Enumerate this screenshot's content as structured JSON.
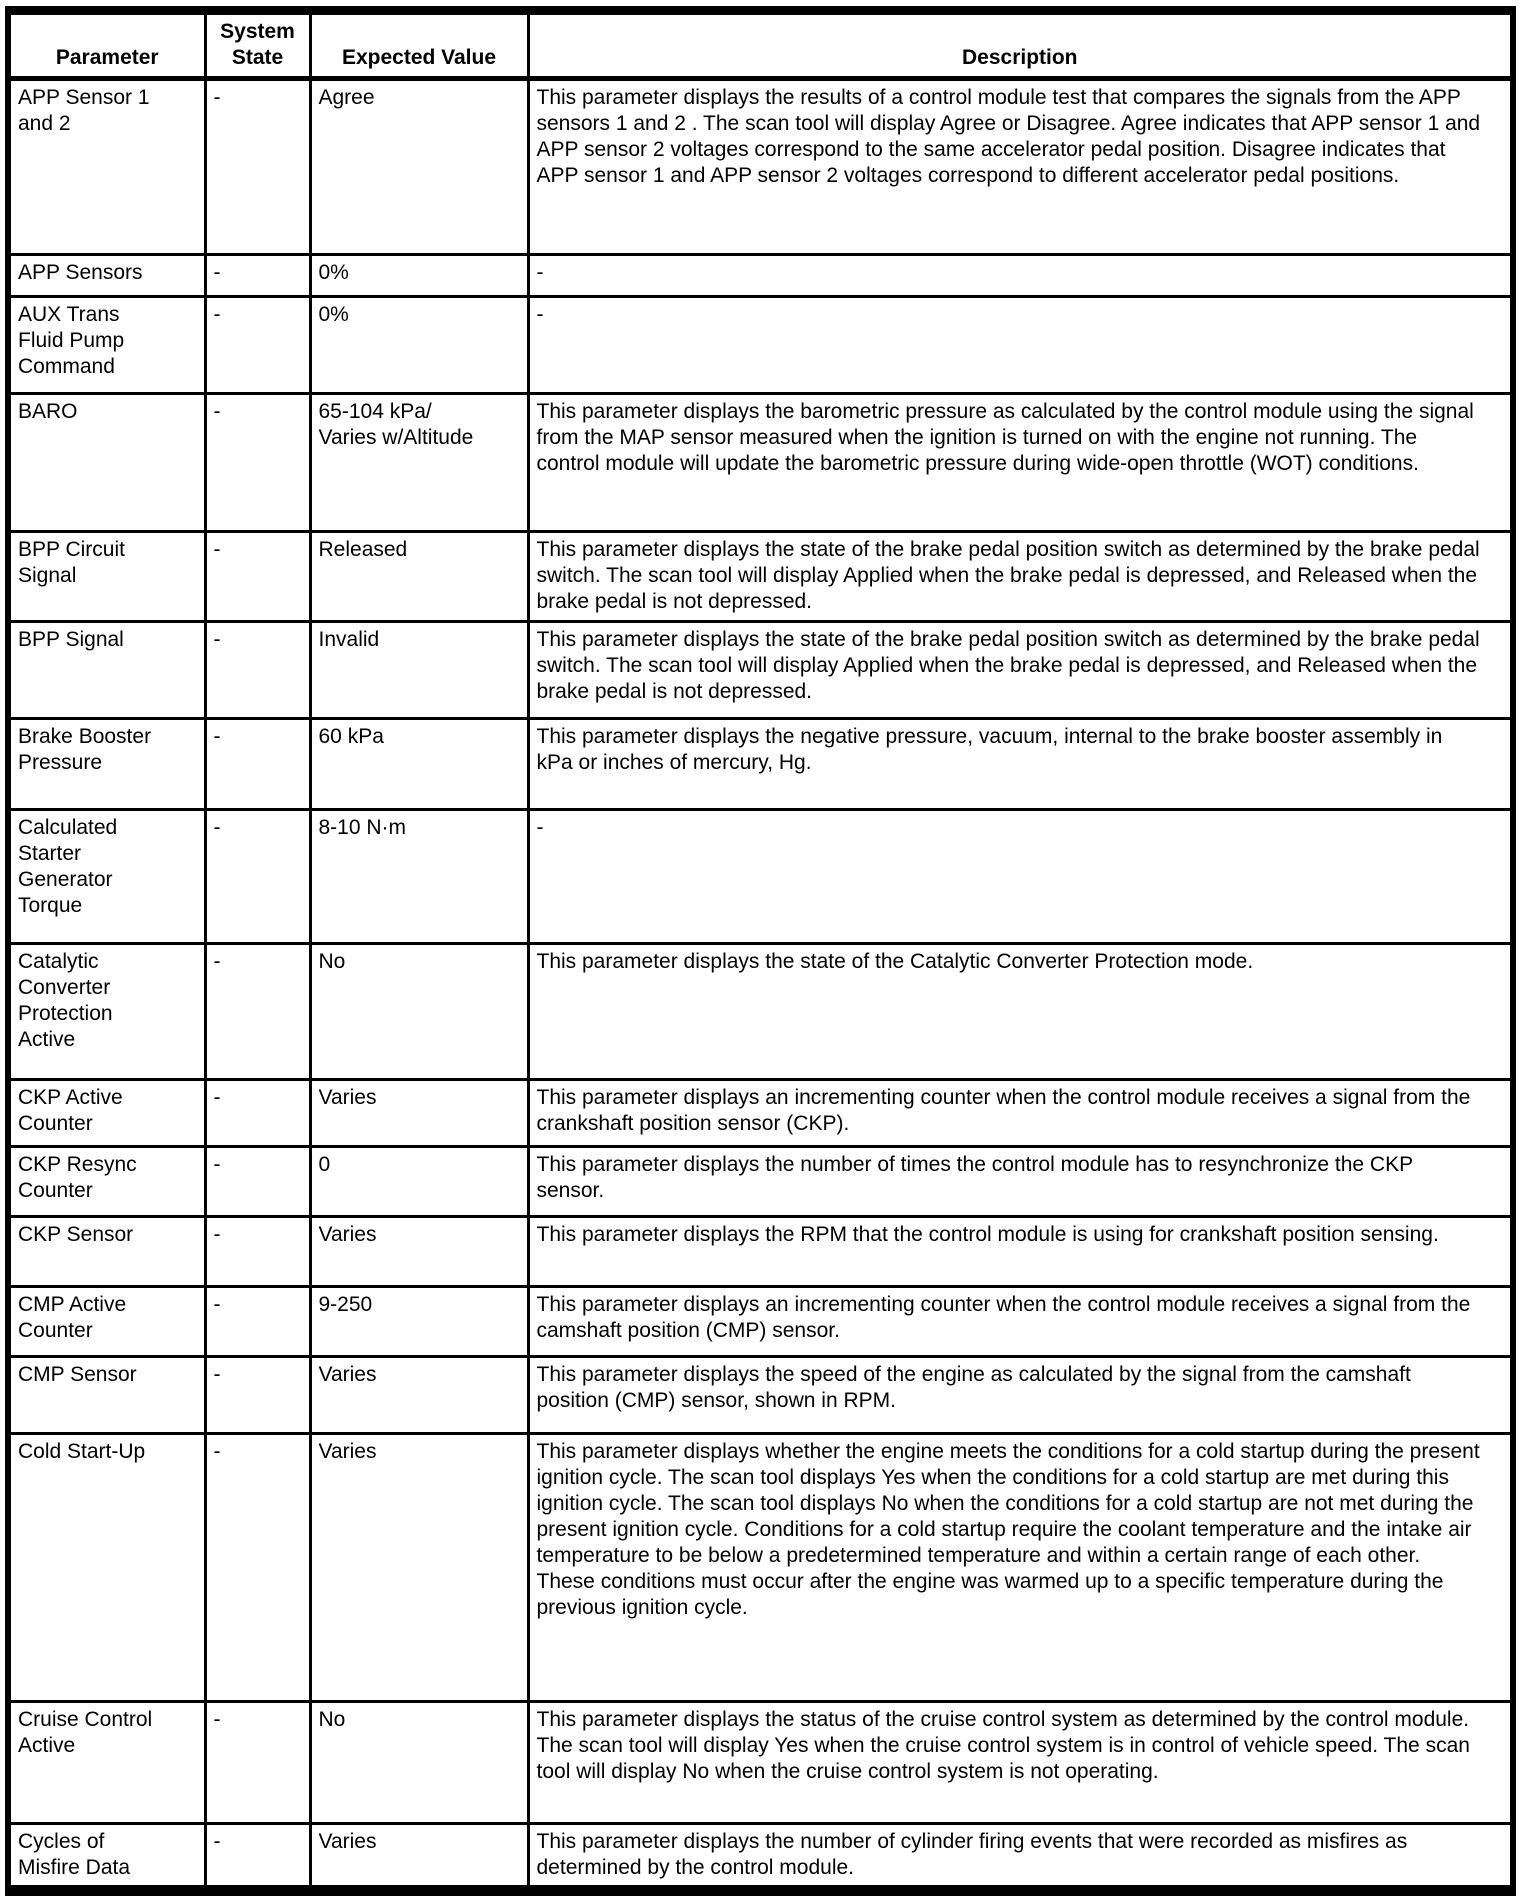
{
  "table": {
    "columns": [
      "Parameter",
      "System State",
      "Expected Value",
      "Description"
    ],
    "rows": [
      {
        "parameter": "APP Sensor 1\nand 2",
        "system_state": "-",
        "expected_value": "Agree",
        "description": "This parameter displays the results of a control module test that compares the signals from the APP sensors 1 and 2 . The scan tool will display Agree or Disagree. Agree indicates that APP sensor 1 and APP sensor 2 voltages correspond to the same accelerator pedal position. Disagree indicates that APP sensor 1 and APP sensor 2 voltages correspond to different accelerator pedal positions."
      },
      {
        "parameter": "APP Sensors",
        "system_state": "-",
        "expected_value": "0%",
        "description": "-"
      },
      {
        "parameter": "AUX Trans\nFluid Pump\nCommand",
        "system_state": "-",
        "expected_value": "0%",
        "description": "-"
      },
      {
        "parameter": "BARO",
        "system_state": "-",
        "expected_value": "65-104 kPa/\nVaries w/Altitude",
        "description": "This parameter displays the barometric pressure as calculated by the control module using the signal from the MAP sensor measured when the ignition is turned on with the engine not running. The control module will update the barometric pressure during wide-open throttle (WOT) conditions."
      },
      {
        "parameter": "BPP Circuit\nSignal",
        "system_state": "-",
        "expected_value": "Released",
        "description": "This parameter displays the state of the brake pedal position switch as determined by the brake pedal switch. The scan tool will display Applied when the brake pedal is depressed, and Released when the brake pedal is not depressed."
      },
      {
        "parameter": "BPP Signal",
        "system_state": "-",
        "expected_value": "Invalid",
        "description": "This parameter displays the state of the brake pedal position switch as determined by the brake pedal switch. The scan tool will display Applied when the brake pedal is depressed, and Released when the brake pedal is not depressed."
      },
      {
        "parameter": "Brake Booster\nPressure",
        "system_state": "-",
        "expected_value": "60 kPa",
        "description": "This parameter displays the negative pressure, vacuum, internal to the brake booster assembly in kPa or inches of mercury, Hg."
      },
      {
        "parameter": "Calculated\nStarter\nGenerator\nTorque",
        "system_state": "-",
        "expected_value": "8-10 N·m",
        "description": "-"
      },
      {
        "parameter": "Catalytic\nConverter\nProtection\nActive",
        "system_state": "-",
        "expected_value": "No",
        "description": "This parameter displays the state of the Catalytic Converter Protection mode."
      },
      {
        "parameter": "CKP Active\nCounter",
        "system_state": "-",
        "expected_value": "Varies",
        "description": "This parameter displays an incrementing counter when the control module receives a signal from the crankshaft position sensor (CKP)."
      },
      {
        "parameter": "CKP Resync\nCounter",
        "system_state": "-",
        "expected_value": "0",
        "description": "This parameter displays the number of times the control module has to resynchronize the CKP sensor."
      },
      {
        "parameter": "CKP Sensor",
        "system_state": "-",
        "expected_value": "Varies",
        "description": "This parameter displays the RPM that the control module is using for crankshaft position sensing."
      },
      {
        "parameter": "CMP Active\nCounter",
        "system_state": "-",
        "expected_value": "9-250",
        "description": "This parameter displays an incrementing counter when the control module receives a signal from the camshaft position (CMP) sensor."
      },
      {
        "parameter": "CMP Sensor",
        "system_state": "-",
        "expected_value": "Varies",
        "description": "This parameter displays the speed of the engine as calculated by the signal from the camshaft position (CMP) sensor, shown in RPM."
      },
      {
        "parameter": "Cold Start-Up",
        "system_state": "-",
        "expected_value": "Varies",
        "description": "This parameter displays whether the engine meets the conditions for a cold startup during the present ignition cycle. The scan tool displays Yes when the conditions for a cold startup are met during this ignition cycle. The scan tool displays No when the conditions for a cold startup are not met during the present ignition cycle. Conditions for a cold startup require the coolant temperature and the intake air temperature to be below a predetermined temperature and within a certain range of each other. These conditions must occur after the engine was warmed up to a specific temperature during the previous ignition cycle."
      },
      {
        "parameter": "Cruise Control\nActive",
        "system_state": "-",
        "expected_value": "No",
        "description": "This parameter displays the status of the cruise control system as determined by the control module. The scan tool will display Yes when the cruise control system is in control of vehicle speed. The scan tool will display No when the cruise control system is not operating."
      },
      {
        "parameter": "Cycles of\nMisfire Data",
        "system_state": "-",
        "expected_value": "Varies",
        "description": "This parameter displays the number of cylinder firing events that were recorded as misfires as determined by the control module."
      }
    ]
  }
}
